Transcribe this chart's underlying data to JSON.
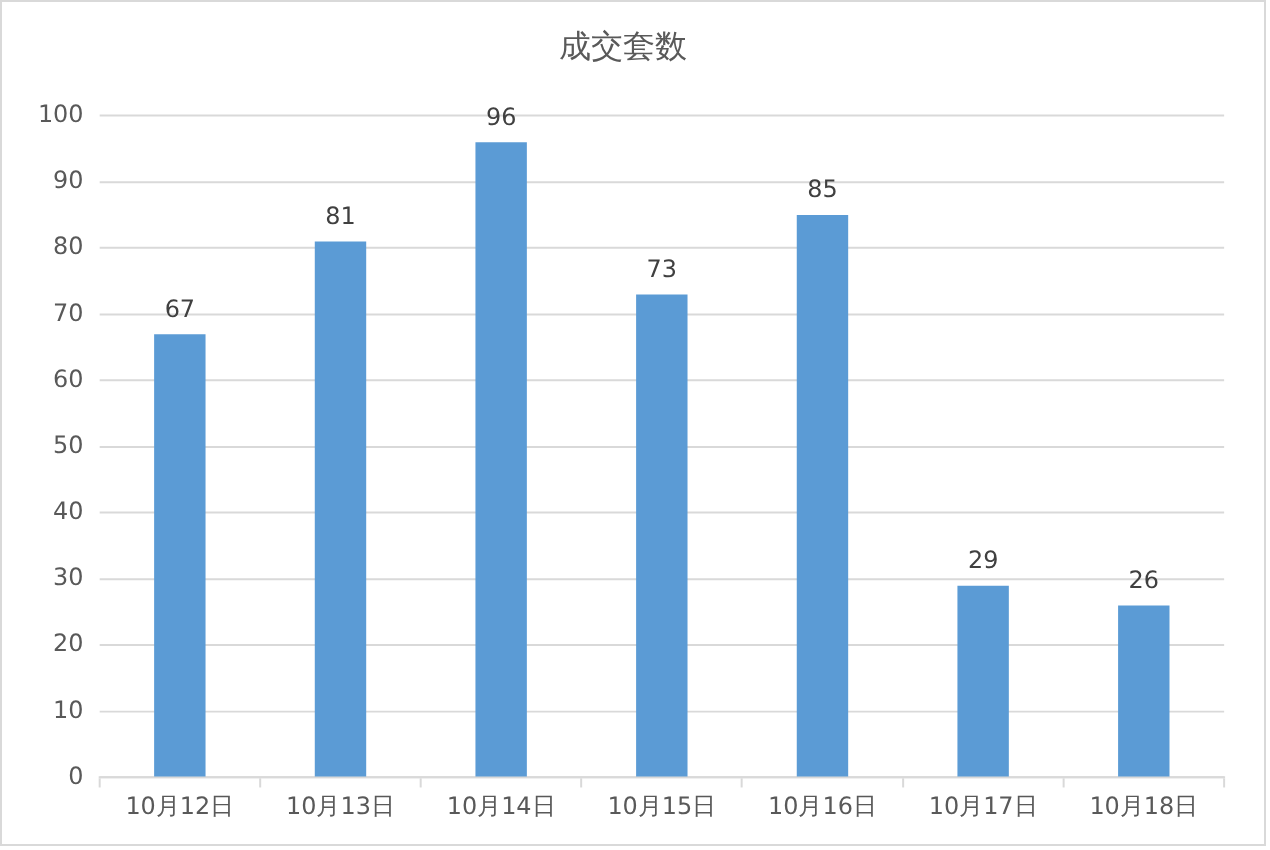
{
  "chart_data": {
    "type": "bar",
    "title": "成交套数",
    "categories": [
      "10月12日",
      "10月13日",
      "10月14日",
      "10月15日",
      "10月16日",
      "10月17日",
      "10月18日"
    ],
    "values": [
      67,
      81,
      96,
      73,
      85,
      29,
      26
    ],
    "color": "#5b9bd5",
    "ylim": [
      0,
      100
    ],
    "yticks": [
      0,
      10,
      20,
      30,
      40,
      50,
      60,
      70,
      80,
      90,
      100
    ],
    "grid": "y",
    "data_labels": true,
    "legend": false
  }
}
